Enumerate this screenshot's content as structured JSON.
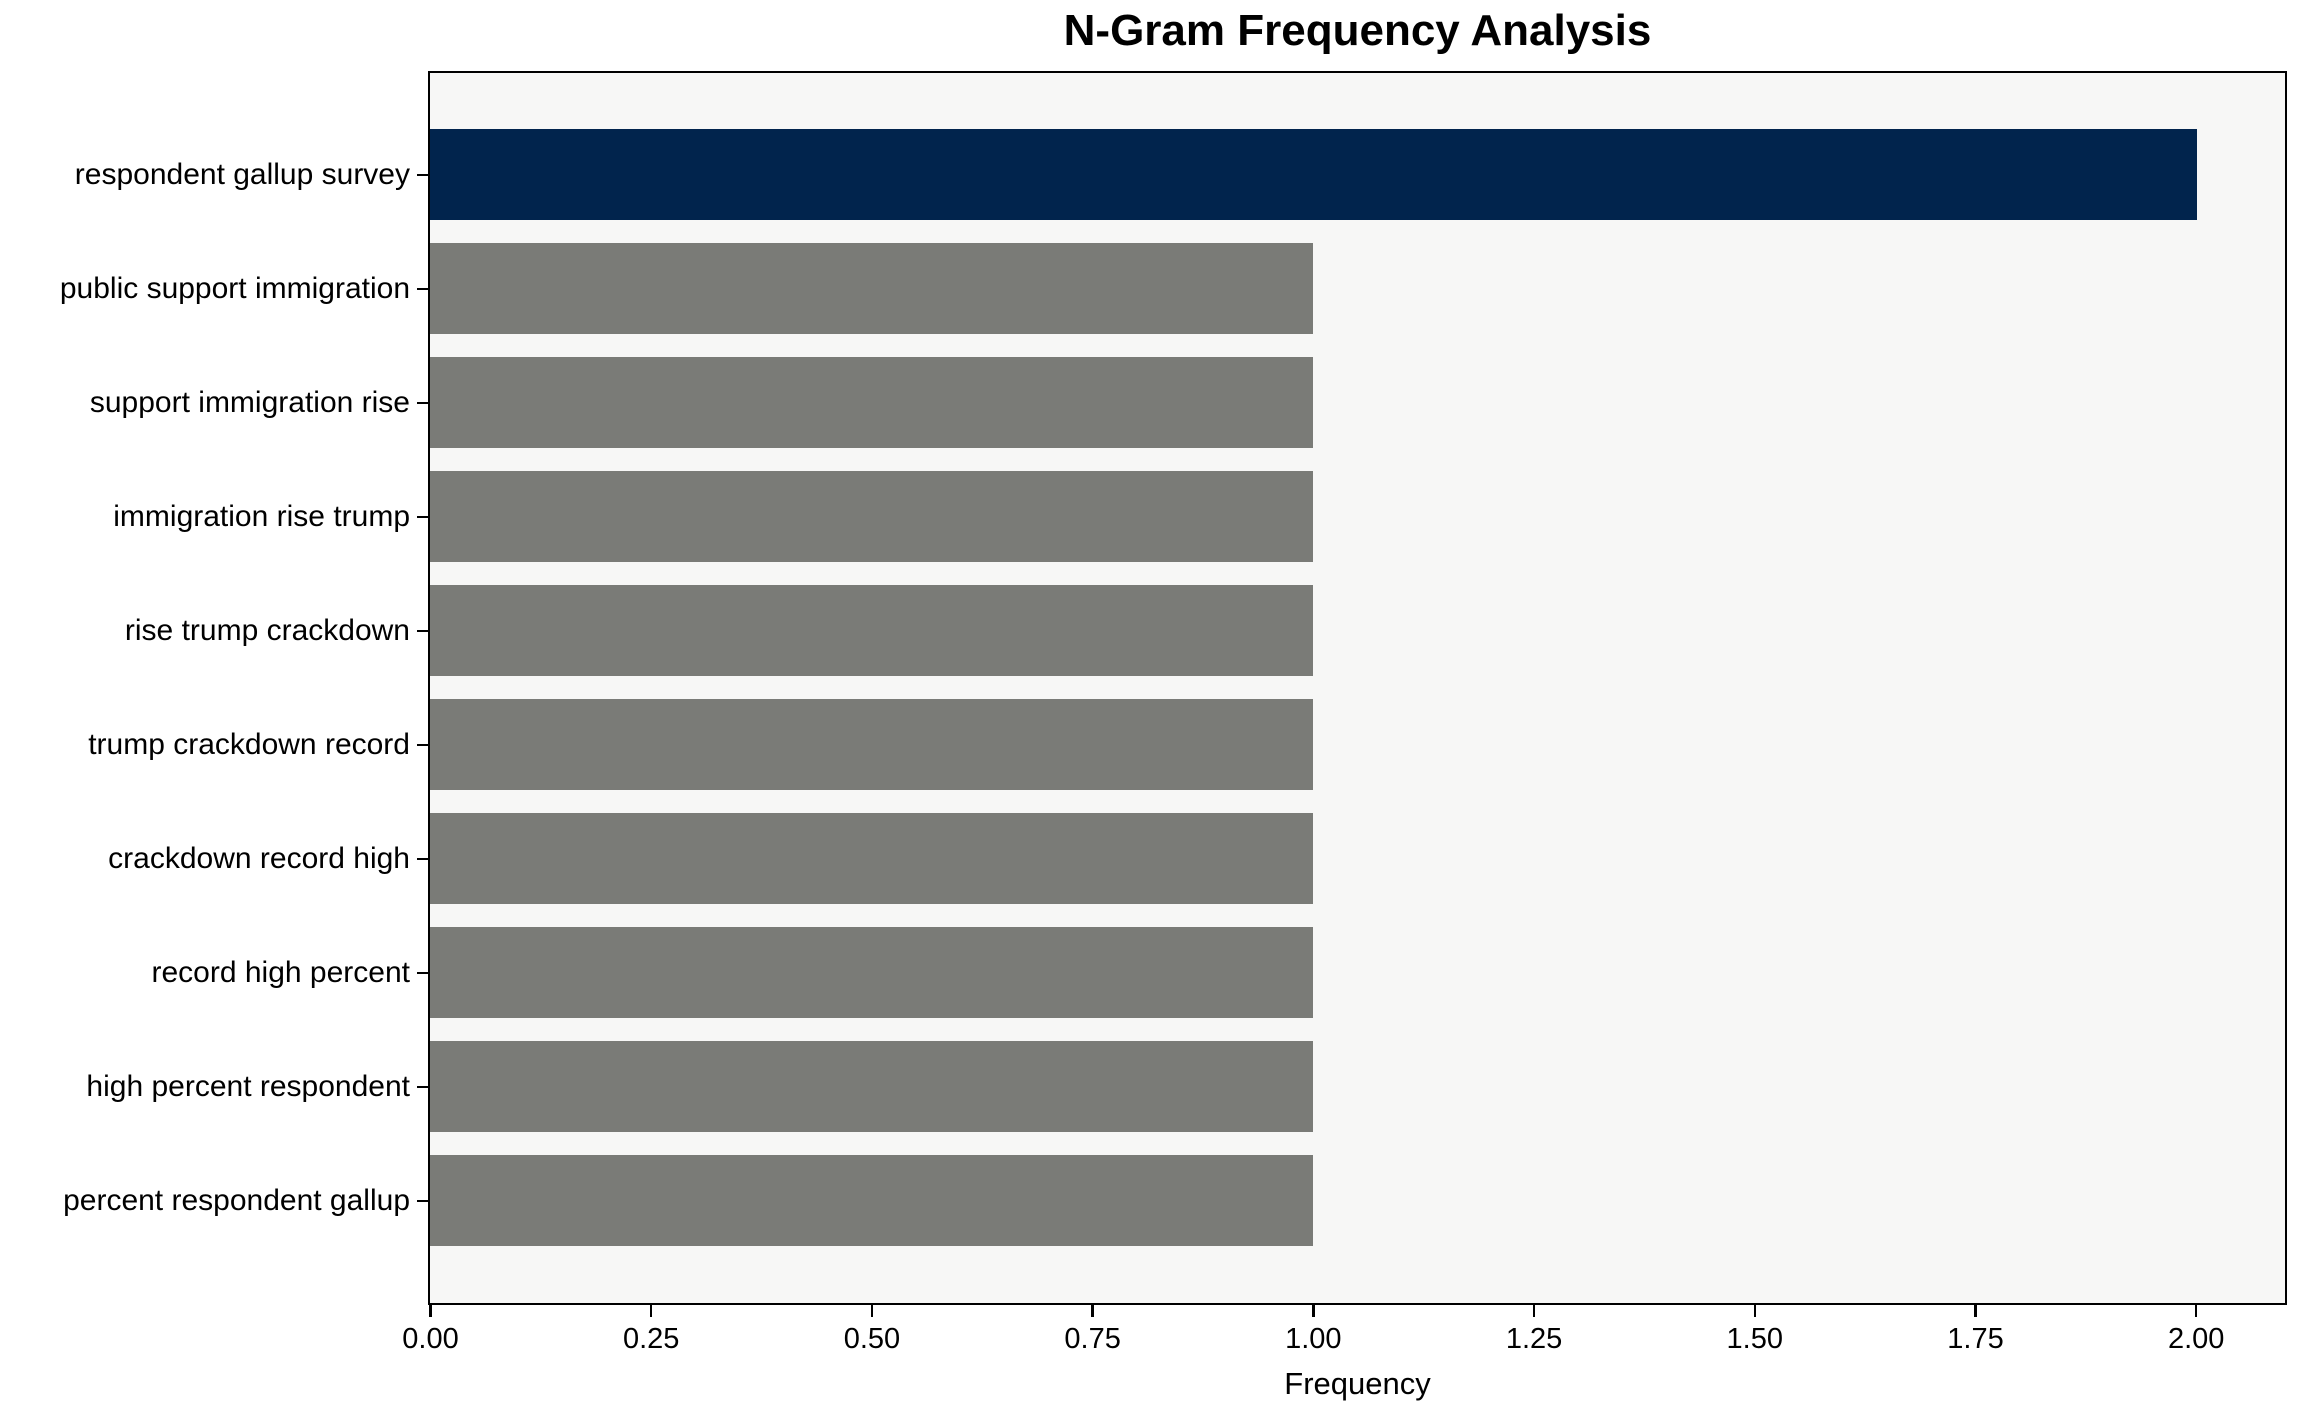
{
  "chart_data": {
    "type": "bar",
    "orientation": "horizontal",
    "title": "N-Gram Frequency Analysis",
    "xlabel": "Frequency",
    "ylabel": "",
    "categories": [
      "respondent gallup survey",
      "public support immigration",
      "support immigration rise",
      "immigration rise trump",
      "rise trump crackdown",
      "trump crackdown record",
      "crackdown record high",
      "record high percent",
      "high percent respondent",
      "percent respondent gallup"
    ],
    "values": [
      2,
      1,
      1,
      1,
      1,
      1,
      1,
      1,
      1,
      1
    ],
    "bar_colors": [
      "#01244d",
      "#7a7b77",
      "#7a7b77",
      "#7a7b77",
      "#7a7b77",
      "#7a7b77",
      "#7a7b77",
      "#7a7b77",
      "#7a7b77",
      "#7a7b77"
    ],
    "xlim": [
      0,
      2.1
    ],
    "x_ticks": [
      "0.00",
      "0.25",
      "0.50",
      "0.75",
      "1.00",
      "1.25",
      "1.50",
      "1.75",
      "2.00"
    ],
    "x_tick_values": [
      0,
      0.25,
      0.5,
      0.75,
      1,
      1.25,
      1.5,
      1.75,
      2
    ],
    "grid": false,
    "legend": "none",
    "colors": {
      "highlight_bar": "#01244d",
      "default_bar": "#7a7b77",
      "plot_background": "#f7f7f6",
      "figure_background": "#ffffff",
      "axis": "#000000",
      "text": "#000000"
    }
  }
}
